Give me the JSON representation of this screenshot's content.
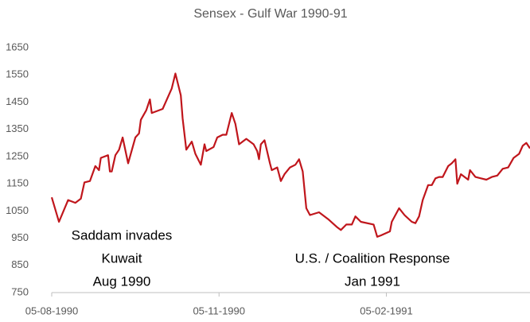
{
  "chart_data": {
    "type": "line",
    "title": "Sensex - Gulf War 1990-91",
    "color": "#c0161c",
    "x": [
      "1990-08-05",
      "1990-08-09",
      "1990-08-14",
      "1990-08-18",
      "1990-08-21",
      "1990-08-23",
      "1990-08-26",
      "1990-08-29",
      "1990-08-31",
      "1990-09-01",
      "1990-09-05",
      "1990-09-06",
      "1990-09-07",
      "1990-09-09",
      "1990-09-11",
      "1990-09-13",
      "1990-09-16",
      "1990-09-20",
      "1990-09-22",
      "1990-09-23",
      "1990-09-26",
      "1990-09-28",
      "1990-09-29",
      "1990-10-05",
      "1990-10-10",
      "1990-10-12",
      "1990-10-15",
      "1990-10-16",
      "1990-10-18",
      "1990-10-21",
      "1990-10-23",
      "1990-10-26",
      "1990-10-28",
      "1990-10-29",
      "1990-11-02",
      "1990-11-04",
      "1990-11-07",
      "1990-11-09",
      "1990-11-12",
      "1990-11-14",
      "1990-11-16",
      "1990-11-20",
      "1990-11-24",
      "1990-11-26",
      "1990-11-27",
      "1990-11-28",
      "1990-11-30",
      "1990-12-03",
      "1990-12-04",
      "1990-12-07",
      "1990-12-09",
      "1990-12-11",
      "1990-12-14",
      "1990-12-17",
      "1990-12-19",
      "1990-12-21",
      "1990-12-23",
      "1990-12-25",
      "1990-12-30",
      "1991-01-04",
      "1991-01-09",
      "1991-01-11",
      "1991-01-14",
      "1991-01-17",
      "1991-01-19",
      "1991-01-22",
      "1991-01-29",
      "1991-01-31",
      "1991-02-02",
      "1991-02-07",
      "1991-02-08",
      "1991-02-12",
      "1991-02-15",
      "1991-02-19",
      "1991-02-21",
      "1991-02-23",
      "1991-02-25",
      "1991-02-28",
      "1991-03-02",
      "1991-03-04",
      "1991-03-06",
      "1991-03-08",
      "1991-03-11",
      "1991-03-13",
      "1991-03-15",
      "1991-03-16",
      "1991-03-18",
      "1991-03-22",
      "1991-03-23",
      "1991-03-26",
      "1991-03-29",
      "1991-04-01",
      "1991-04-04",
      "1991-04-07",
      "1991-04-10",
      "1991-04-13",
      "1991-04-16",
      "1991-04-19",
      "1991-04-21",
      "1991-04-23",
      "1991-04-25"
    ],
    "values": [
      1100,
      1010,
      1090,
      1080,
      1095,
      1155,
      1160,
      1215,
      1200,
      1245,
      1255,
      1195,
      1195,
      1255,
      1275,
      1320,
      1225,
      1320,
      1335,
      1385,
      1420,
      1460,
      1410,
      1425,
      1500,
      1555,
      1475,
      1390,
      1275,
      1305,
      1260,
      1220,
      1295,
      1270,
      1285,
      1320,
      1330,
      1330,
      1410,
      1370,
      1295,
      1315,
      1295,
      1270,
      1240,
      1295,
      1310,
      1225,
      1200,
      1210,
      1160,
      1185,
      1210,
      1220,
      1240,
      1195,
      1060,
      1035,
      1045,
      1020,
      990,
      980,
      1000,
      1000,
      1030,
      1010,
      1000,
      955,
      960,
      975,
      1010,
      1060,
      1035,
      1010,
      1005,
      1030,
      1090,
      1145,
      1145,
      1170,
      1175,
      1175,
      1215,
      1225,
      1240,
      1150,
      1185,
      1165,
      1200,
      1175,
      1170,
      1165,
      1175,
      1180,
      1205,
      1210,
      1245,
      1260,
      1290,
      1300,
      1280
    ],
    "xlim": [
      "1990-08-05",
      "1991-04-25"
    ],
    "xticks": [
      {
        "value": "1990-08-05",
        "label": "05-08-1990"
      },
      {
        "value": "1990-11-05",
        "label": "05-11-1990"
      },
      {
        "value": "1991-02-05",
        "label": "05-02-1991"
      }
    ],
    "ylim": [
      750,
      1650
    ],
    "yticks": [
      750,
      850,
      950,
      1050,
      1150,
      1250,
      1350,
      1450,
      1550,
      1650
    ],
    "grid": false,
    "annotations": [
      [
        "Saddam invades",
        "Kuwait",
        "Aug 1990"
      ],
      [
        "U.S. / Coalition Response",
        "Jan 1991"
      ]
    ]
  }
}
